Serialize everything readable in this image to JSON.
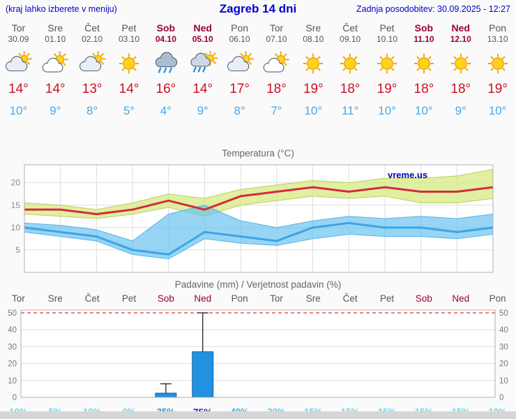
{
  "header": {
    "left_note": "(kraj lahko izberete v meniju)",
    "title": "Zagreb 14 dni",
    "updated": "Zadnja posodobitev: 30.09.2025 - 12:27"
  },
  "colors": {
    "link_blue": "#0000cc",
    "weekday": "#555555",
    "weekend": "#990033",
    "temp_max": "#cc1122",
    "temp_min": "#44aaee",
    "grid": "#dddddd",
    "chart_border": "#b0b0b0",
    "bar_fill": "#2191e0",
    "bar_stroke": "#1467a6",
    "threshold_red": "#e03030",
    "footer_gray": "#d6d6d6",
    "title_gray": "#666666"
  },
  "days": [
    {
      "name": "Tor",
      "date": "30.09",
      "weekend": false,
      "icon": "mostly-cloudy",
      "tmax": "14°",
      "tmin": "10°"
    },
    {
      "name": "Sre",
      "date": "01.10",
      "weekend": false,
      "icon": "partly-cloudy",
      "tmax": "14°",
      "tmin": "9°"
    },
    {
      "name": "Čet",
      "date": "02.10",
      "weekend": false,
      "icon": "mostly-cloudy",
      "tmax": "13°",
      "tmin": "8°"
    },
    {
      "name": "Pet",
      "date": "03.10",
      "weekend": false,
      "icon": "sunny",
      "tmax": "14°",
      "tmin": "5°"
    },
    {
      "name": "Sob",
      "date": "04.10",
      "weekend": true,
      "icon": "rain",
      "tmax": "16°",
      "tmin": "4°"
    },
    {
      "name": "Ned",
      "date": "05.10",
      "weekend": true,
      "icon": "sun-rain",
      "tmax": "14°",
      "tmin": "9°"
    },
    {
      "name": "Pon",
      "date": "06.10",
      "weekend": false,
      "icon": "mostly-cloudy",
      "tmax": "17°",
      "tmin": "8°"
    },
    {
      "name": "Tor",
      "date": "07.10",
      "weekend": false,
      "icon": "partly-cloudy",
      "tmax": "18°",
      "tmin": "7°"
    },
    {
      "name": "Sre",
      "date": "08.10",
      "weekend": false,
      "icon": "sunny",
      "tmax": "19°",
      "tmin": "10°"
    },
    {
      "name": "Čet",
      "date": "09.10",
      "weekend": false,
      "icon": "sunny",
      "tmax": "18°",
      "tmin": "11°"
    },
    {
      "name": "Pet",
      "date": "10.10",
      "weekend": false,
      "icon": "sunny",
      "tmax": "19°",
      "tmin": "10°"
    },
    {
      "name": "Sob",
      "date": "11.10",
      "weekend": true,
      "icon": "sunny",
      "tmax": "18°",
      "tmin": "10°"
    },
    {
      "name": "Ned",
      "date": "12.10",
      "weekend": true,
      "icon": "sunny",
      "tmax": "18°",
      "tmin": "9°"
    },
    {
      "name": "Pon",
      "date": "13.10",
      "weekend": false,
      "icon": "sunny",
      "tmax": "19°",
      "tmin": "10°"
    }
  ],
  "chart_data": [
    {
      "type": "line",
      "title": "Temperatura (°C)",
      "watermark": "vreme.us",
      "categories": [
        "Tor",
        "Sre",
        "Čet",
        "Pet",
        "Sob",
        "Ned",
        "Pon",
        "Tor",
        "Sre",
        "Čet",
        "Pet",
        "Sob",
        "Ned",
        "Pon"
      ],
      "ylim": [
        0,
        24
      ],
      "yticks": [
        5,
        10,
        15,
        20
      ],
      "series": [
        {
          "name": "temp_max",
          "values": [
            14,
            14,
            13,
            14,
            16,
            14,
            17,
            18,
            19,
            18,
            19,
            18,
            18,
            19
          ]
        },
        {
          "name": "temp_min",
          "values": [
            10,
            9,
            8,
            5,
            4,
            9,
            8,
            7,
            10,
            11,
            10,
            10,
            9,
            10
          ]
        },
        {
          "name": "max_range_high",
          "values": [
            15.5,
            15,
            14,
            15.5,
            17.5,
            16.5,
            18.5,
            19.5,
            20.5,
            20,
            21,
            21,
            21.5,
            23
          ]
        },
        {
          "name": "max_range_low",
          "values": [
            13,
            12.5,
            12,
            13,
            14.5,
            12.5,
            15,
            16,
            17,
            16.5,
            17,
            15.5,
            15.5,
            16.5
          ]
        },
        {
          "name": "min_range_high",
          "values": [
            11,
            10.5,
            9.5,
            7,
            13,
            15,
            11.5,
            10,
            11.5,
            12.5,
            12,
            12.5,
            12,
            13
          ]
        },
        {
          "name": "min_range_low",
          "values": [
            9,
            8,
            7,
            4,
            3,
            7.5,
            6.5,
            6,
            7.5,
            8.5,
            8,
            8,
            7.5,
            8.5
          ]
        }
      ]
    },
    {
      "type": "bar",
      "title": "Padavine (mm) / Verjetnost padavin (%)",
      "categories": [
        "Tor",
        "Sre",
        "Čet",
        "Pet",
        "Sob",
        "Ned",
        "Pon",
        "Tor",
        "Sre",
        "Čet",
        "Pet",
        "Sob",
        "Ned",
        "Pon"
      ],
      "ylim": [
        0,
        52
      ],
      "yticks": [
        0,
        10,
        20,
        30,
        40,
        50
      ],
      "threshold": 50,
      "values": [
        0,
        0,
        0,
        0,
        2.5,
        27,
        0,
        0,
        0,
        0,
        0,
        0,
        0,
        0
      ],
      "whisker_max": [
        null,
        null,
        null,
        null,
        8,
        50,
        null,
        null,
        null,
        null,
        null,
        null,
        null,
        null
      ],
      "probabilities": [
        {
          "label": "10%",
          "color": "#6fd0ea"
        },
        {
          "label": "5%",
          "color": "#6fd0ea"
        },
        {
          "label": "10%",
          "color": "#6fd0ea"
        },
        {
          "label": "0%",
          "color": "#6fd0ea"
        },
        {
          "label": "35%",
          "color": "#2e8fc2"
        },
        {
          "label": "75%",
          "color": "#1c2f9e"
        },
        {
          "label": "40%",
          "color": "#49acd6"
        },
        {
          "label": "20%",
          "color": "#66c2e2"
        },
        {
          "label": "15%",
          "color": "#6fd0ea"
        },
        {
          "label": "15%",
          "color": "#6fd0ea"
        },
        {
          "label": "15%",
          "color": "#6fd0ea"
        },
        {
          "label": "15%",
          "color": "#6fd0ea"
        },
        {
          "label": "15%",
          "color": "#6fd0ea"
        },
        {
          "label": "10%",
          "color": "#6fd0ea"
        }
      ]
    }
  ]
}
